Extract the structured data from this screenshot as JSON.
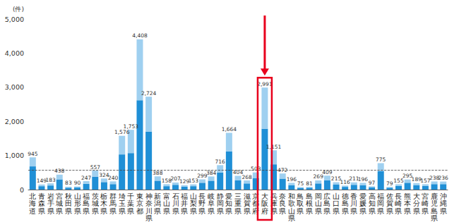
{
  "chart_data": {
    "type": "bar",
    "stacked": true,
    "grid": false,
    "data_labels": true,
    "ylabel": "(件)",
    "categories": [
      "北海道",
      "青森県",
      "岩手県",
      "宮城県",
      "秋田県",
      "山形県",
      "福島県",
      "茨城県",
      "栃木県",
      "群馬県",
      "埼玉県",
      "千葉県",
      "東京都",
      "神奈川県",
      "新潟県",
      "富山県",
      "石川県",
      "福井県",
      "山梨県",
      "長野県",
      "岐阜県",
      "静岡県",
      "愛知県",
      "三重県",
      "滋賀県",
      "京都府",
      "大阪府",
      "兵庫県",
      "奈良県",
      "和歌山県",
      "鳥取県",
      "島根県",
      "岡山県",
      "広島県",
      "山口県",
      "徳島県",
      "香川県",
      "愛媛県",
      "高知県",
      "福岡県",
      "佐賀県",
      "長崎県",
      "熊本県",
      "大分県",
      "宮崎県",
      "鹿児島県",
      "沖縄県"
    ],
    "series": [
      {
        "color": "#1f8fd6",
        "values": [
          680,
          100,
          120,
          300,
          55,
          60,
          170,
          380,
          220,
          160,
          1030,
          1070,
          2620,
          1700,
          260,
          100,
          140,
          85,
          100,
          200,
          260,
          500,
          1120,
          270,
          180,
          340,
          1780,
          740,
          320,
          130,
          50,
          55,
          180,
          270,
          145,
          80,
          140,
          130,
          65,
          540,
          55,
          105,
          200,
          125,
          105,
          160,
          160
        ]
      },
      {
        "color": "#9fd0f0",
        "values": [
          265,
          49,
          63,
          138,
          28,
          30,
          77,
          177,
          104,
          80,
          546,
          683,
          1788,
          1024,
          128,
          58,
          67,
          44,
          53,
          99,
          124,
          216,
          544,
          134,
          88,
          163,
          1211,
          411,
          152,
          66,
          25,
          26,
          89,
          139,
          70,
          36,
          71,
          66,
          32,
          235,
          24,
          50,
          95,
          64,
          52,
          78,
          76
        ]
      }
    ],
    "totals": {
      "values": [
        945,
        149,
        183,
        438,
        83,
        90,
        247,
        557,
        324,
        240,
        1576,
        1753,
        4408,
        2724,
        388,
        158,
        207,
        129,
        153,
        299,
        384,
        716,
        1664,
        404,
        268,
        503,
        2991,
        1151,
        472,
        196,
        75,
        81,
        269,
        409,
        215,
        116,
        211,
        196,
        97,
        775,
        79,
        155,
        295,
        189,
        157,
        238,
        236
      ],
      "value_labels": [
        "945",
        "149",
        "183",
        "438",
        "83",
        "90",
        "247",
        "557",
        "324",
        "240",
        "1,576",
        "1,753",
        "4,408",
        "2,724",
        "388",
        "158",
        "207",
        "129",
        "153",
        "299",
        "384",
        "716",
        "1,664",
        "404",
        "268",
        "503",
        "2,991",
        "1,151",
        "472",
        "196",
        "75",
        "81",
        "269",
        "409",
        "215",
        "116",
        "211",
        "196",
        "97",
        "775",
        "79",
        "155",
        "295",
        "189",
        "157",
        "238",
        "236"
      ]
    },
    "reference_line": 580,
    "highlight": {
      "category": "大阪府",
      "color": "#e8001c"
    },
    "ylim": [
      0,
      5000
    ],
    "yticks": [
      0,
      {
        "value": 1000,
        "label": "1,000"
      },
      {
        "value": 2000,
        "label": "2,000"
      },
      {
        "value": 3000,
        "label": "3,000"
      },
      {
        "value": 4000,
        "label": "4,000"
      },
      {
        "value": 5000,
        "label": "5,000"
      }
    ]
  }
}
